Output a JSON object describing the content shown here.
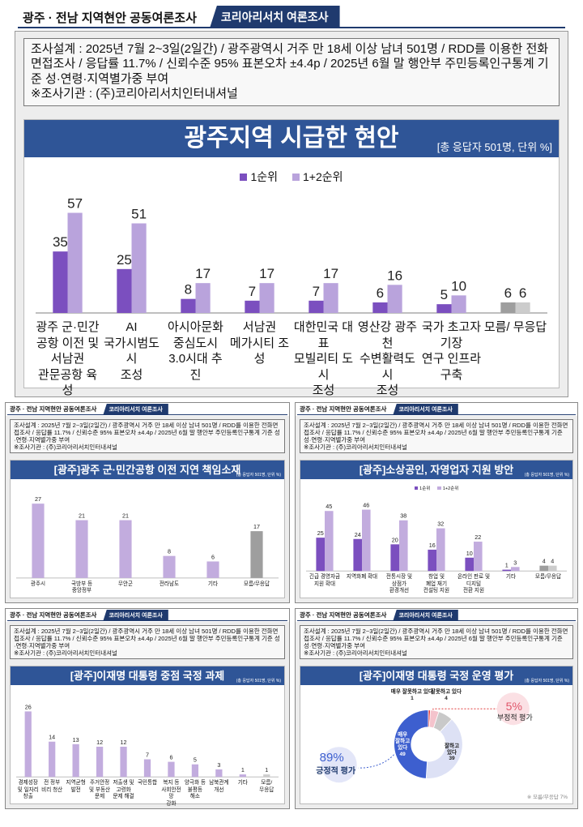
{
  "header": {
    "title": "광주 · 전남 지역현안 공동여론조사",
    "badge": "코리아리서치 여론조사"
  },
  "survey": {
    "design": "조사설계 : 2025년 7월 2~3일(2일간) / 광주광역시 거주 만 18세 이상 남녀 501명 / RDD를 이용한 전화면접조사 / 응답률 11.7% / 신뢰수준 95% 표본오차 ±4.4p / 2025년 6월 말 행안부 주민등록인구통계 기준 성·연령·지역별가중 부여",
    "agency": "※조사기관 : (주)코리아리서치인터내셔널"
  },
  "chart_data": [
    {
      "type": "bar",
      "title": "광주지역 시급한 현안",
      "subtitle": "[총 응답자 501명, 단위 %]",
      "categories": [
        "광주 군·민간\n공항 이전 및\n서남권\n관문공항 육성",
        "AI\n국가시범도시\n조성",
        "아시아문화\n중심도시\n3.0시대 추진",
        "서남권\n메가시티 조성",
        "대한민국 대표\n모빌리티 도시\n조성",
        "영산강 광주천\n수변활력도시\n조성",
        "국가 초고자기장\n연구 인프라\n구축",
        "모름/ 무응답"
      ],
      "series": [
        {
          "name": "1순위",
          "values": [
            35,
            25,
            8,
            7,
            7,
            6,
            5,
            6
          ],
          "colors": [
            "#7b4fbf",
            "#7b4fbf",
            "#7b4fbf",
            "#7b4fbf",
            "#7b4fbf",
            "#7b4fbf",
            "#7b4fbf",
            "#9e9e9e"
          ]
        },
        {
          "name": "1+2순위",
          "values": [
            57,
            51,
            17,
            17,
            17,
            16,
            10,
            6
          ],
          "colors": [
            "#b9a3dc",
            "#b9a3dc",
            "#b9a3dc",
            "#b9a3dc",
            "#b9a3dc",
            "#b9a3dc",
            "#b9a3dc",
            "#cccccc"
          ]
        }
      ],
      "ylim": [
        0,
        60
      ]
    },
    {
      "type": "bar",
      "title": "[광주]광주 군·민간공항 이전 지연 책임소재",
      "subtitle": "(총 응답자 501명, 단위 %)",
      "categories": [
        "광주시",
        "국방부 등\n중앙정부",
        "무안군",
        "전라남도",
        "기타",
        "모름/무응답"
      ],
      "values": [
        27,
        21,
        21,
        8,
        6,
        17
      ],
      "colors": [
        "#c2acde",
        "#c2acde",
        "#c2acde",
        "#c2acde",
        "#c2acde",
        "#9e9e9e"
      ],
      "ylim": [
        0,
        30
      ]
    },
    {
      "type": "bar",
      "title": "[광주]소상공인, 자영업자 지원 방안",
      "subtitle": "(총 응답자 501명, 단위 %)",
      "categories": [
        "긴급 경영자금\n지원 확대",
        "지역화폐 확대",
        "전통시장 및\n상점가\n환경개선",
        "창업 및\n폐업 재기\n컨설팅 지원",
        "온라인 판로 및\n디지털\n전환 지원",
        "기타",
        "모름/무응답"
      ],
      "series": [
        {
          "name": "1순위",
          "values": [
            25,
            24,
            20,
            16,
            10,
            1,
            4
          ],
          "colors": [
            "#7b4fbf",
            "#7b4fbf",
            "#7b4fbf",
            "#7b4fbf",
            "#7b4fbf",
            "#7b4fbf",
            "#9e9e9e"
          ]
        },
        {
          "name": "1+2순위",
          "values": [
            45,
            46,
            38,
            32,
            22,
            3,
            4
          ],
          "colors": [
            "#c2acde",
            "#c2acde",
            "#c2acde",
            "#c2acde",
            "#c2acde",
            "#c2acde",
            "#cccccc"
          ]
        }
      ],
      "ylim": [
        0,
        50
      ]
    },
    {
      "type": "bar",
      "title": "[광주]이재명 대통령 중점 국정 과제",
      "subtitle": "(총 응답자 501명, 단위 %)",
      "categories": [
        "경제성장\n및 일자리\n창출",
        "전 정부\n비리 청산",
        "지역균형\n발전",
        "주거안정\n및 부동산\n문제",
        "저출생 및\n고령화\n문제 해결",
        "국민통합",
        "복지 등\n사회안전망\n강화",
        "양극화 등\n불평등\n해소",
        "남북관계\n개선",
        "기타",
        "모름/\n무응답"
      ],
      "values": [
        26,
        14,
        13,
        12,
        12,
        7,
        6,
        5,
        3,
        1,
        1
      ],
      "colors": [
        "#c2acde",
        "#c2acde",
        "#c2acde",
        "#c2acde",
        "#c2acde",
        "#c2acde",
        "#c2acde",
        "#c2acde",
        "#c2acde",
        "#c2acde",
        "#cccccc"
      ],
      "ylim": [
        0,
        30
      ]
    },
    {
      "type": "pie",
      "title": "[광주]이재명 대통령 국정 운영 평가",
      "subtitle": "(총 응답자 501명, 단위 %)",
      "categories": [
        "매우 잘못하고 있다",
        "잘못하고 있다",
        null,
        "잘하고\n있다",
        "매우\n잘하고\n있다"
      ],
      "values": [
        1,
        4,
        7,
        39,
        49
      ],
      "colors": [
        "#e03c3c",
        "#f4c3cc",
        "#c9c9c9",
        "#dde1f5",
        "#3d5fcf"
      ],
      "annotations": [
        {
          "text": "89%",
          "caption": "긍정적 평가"
        },
        {
          "text": "5%",
          "caption": "부정적 평가"
        }
      ],
      "note": "※ 모름/무응답 7%"
    }
  ]
}
